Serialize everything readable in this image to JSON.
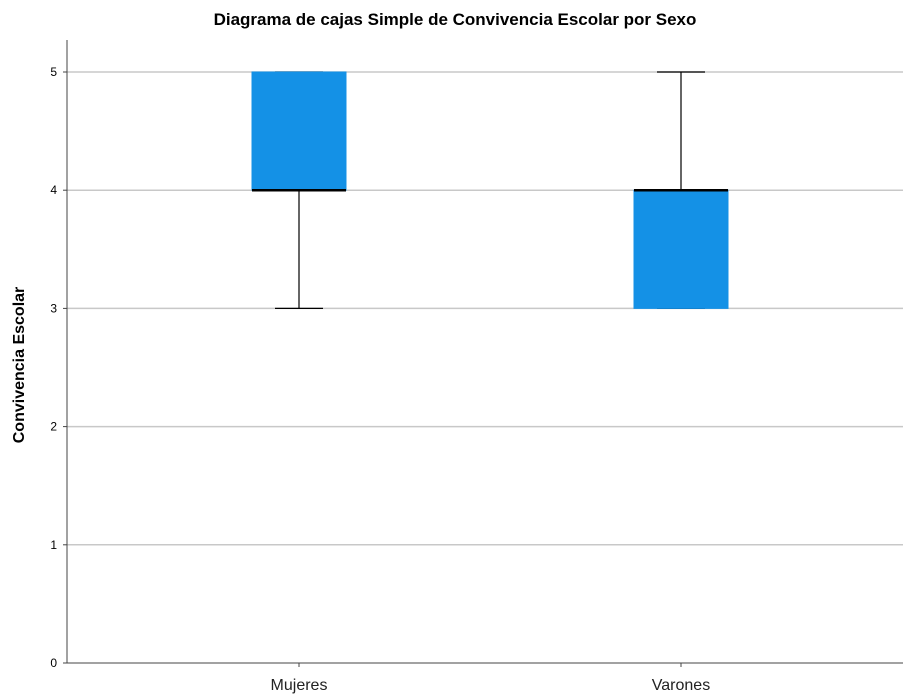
{
  "chart_data": {
    "type": "boxplot",
    "title": "Diagrama de cajas Simple de Convivencia Escolar por Sexo",
    "xlabel": "",
    "ylabel": "Convivencia Escolar",
    "ylim": [
      0,
      5.25
    ],
    "yticks": [
      0,
      1,
      2,
      3,
      4,
      5
    ],
    "ytick_labels": [
      "0",
      "1",
      "2",
      "3",
      "4",
      "5"
    ],
    "grid": true,
    "box_color": "#1491E6",
    "categories": [
      "Mujeres",
      "Varones"
    ],
    "boxes": [
      {
        "category": "Mujeres",
        "min": 3,
        "q1": 4,
        "median": 4,
        "q3": 5,
        "max": 5
      },
      {
        "category": "Varones",
        "min": 3,
        "q1": 3,
        "median": 4,
        "q3": 4,
        "max": 5
      }
    ]
  }
}
